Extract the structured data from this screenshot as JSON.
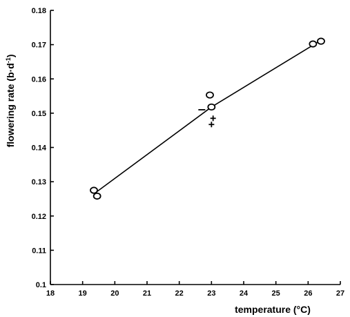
{
  "chart_data": {
    "type": "scatter",
    "xlabel": "temperature (°C)",
    "ylabel": "flowering rate (b·d",
    "ylabel_sup": "-1",
    "ylabel_close": ")",
    "xlim": [
      18,
      27
    ],
    "ylim": [
      0.1,
      0.18
    ],
    "x_ticks": [
      18,
      19,
      20,
      21,
      22,
      23,
      24,
      25,
      26,
      27
    ],
    "x_tick_labels": [
      "18",
      "19",
      "20",
      "21",
      "22",
      "23",
      "24",
      "25",
      "26",
      "27"
    ],
    "y_ticks": [
      0.1,
      0.11,
      0.12,
      0.13,
      0.14,
      0.15,
      0.16,
      0.17,
      0.18
    ],
    "y_tick_labels": [
      "0.1",
      "0.11",
      "0.12",
      "0.13",
      "0.14",
      "0.15",
      "0.16",
      "0.17",
      "0.18"
    ],
    "grid": false,
    "series": [
      {
        "marker": "circle",
        "points": [
          {
            "x": 19.35,
            "y": 0.1275
          },
          {
            "x": 19.45,
            "y": 0.1258
          },
          {
            "x": 22.95,
            "y": 0.1553
          },
          {
            "x": 23.0,
            "y": 0.1518
          },
          {
            "x": 26.15,
            "y": 0.1702
          },
          {
            "x": 26.4,
            "y": 0.171
          }
        ]
      },
      {
        "marker": "minus",
        "points": [
          {
            "x": 22.7,
            "y": 0.151
          }
        ]
      },
      {
        "marker": "plus",
        "points": [
          {
            "x": 23.05,
            "y": 0.1485
          },
          {
            "x": 23.0,
            "y": 0.1467
          }
        ]
      }
    ],
    "fit_line": [
      {
        "x": 19.4,
        "y": 0.1268
      },
      {
        "x": 23.0,
        "y": 0.1518
      },
      {
        "x": 26.3,
        "y": 0.1707
      }
    ]
  }
}
